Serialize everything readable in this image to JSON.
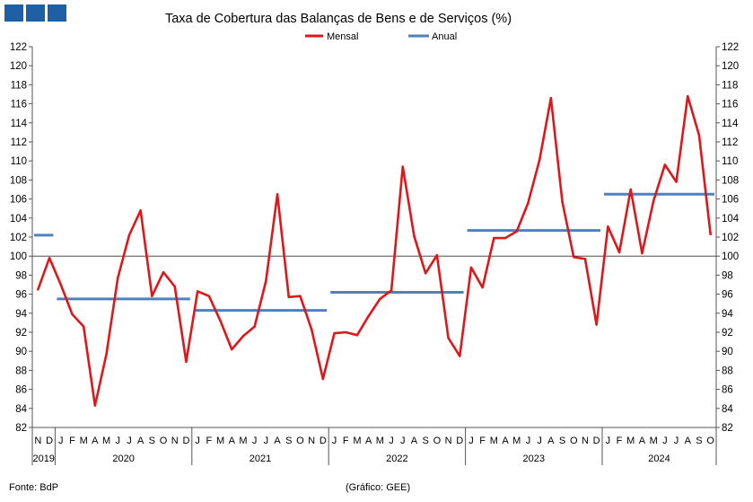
{
  "logo_squares": 3,
  "chart_data": {
    "type": "line",
    "title": "Taxa de Cobertura das Balanças de Bens e de Serviços (%)",
    "ylim": [
      82,
      122
    ],
    "yticks": [
      82,
      84,
      86,
      88,
      90,
      92,
      94,
      96,
      98,
      100,
      102,
      104,
      106,
      108,
      110,
      112,
      114,
      116,
      118,
      120,
      122
    ],
    "y_ticks_both_sides": true,
    "reference_line": 100,
    "grid": false,
    "legend_position": "top-center",
    "months": [
      "N",
      "D",
      "J",
      "F",
      "M",
      "A",
      "M",
      "J",
      "J",
      "A",
      "S",
      "O",
      "N",
      "D",
      "J",
      "F",
      "M",
      "A",
      "M",
      "J",
      "J",
      "A",
      "S",
      "O",
      "N",
      "D",
      "J",
      "F",
      "M",
      "A",
      "M",
      "J",
      "J",
      "A",
      "S",
      "O",
      "N",
      "D",
      "J",
      "F",
      "M",
      "A",
      "M",
      "J",
      "J",
      "A",
      "S",
      "O",
      "N",
      "D",
      "J",
      "F",
      "M",
      "A",
      "M",
      "J",
      "J",
      "A",
      "S",
      "O"
    ],
    "years": [
      {
        "label": "2019",
        "start": 0,
        "end": 2
      },
      {
        "label": "2020",
        "start": 2,
        "end": 14
      },
      {
        "label": "2021",
        "start": 14,
        "end": 26
      },
      {
        "label": "2022",
        "start": 26,
        "end": 38
      },
      {
        "label": "2023",
        "start": 38,
        "end": 50
      },
      {
        "label": "2024",
        "start": 50,
        "end": 60
      }
    ],
    "series": [
      {
        "name": "Mensal",
        "color": "#e0161b",
        "values": [
          96.5,
          99.8,
          97.0,
          93.9,
          92.6,
          84.3,
          89.7,
          97.7,
          102.2,
          104.8,
          95.8,
          98.3,
          96.8,
          88.9,
          96.3,
          95.8,
          93.2,
          90.2,
          91.6,
          92.6,
          97.4,
          106.5,
          95.7,
          95.8,
          92.3,
          87.1,
          91.9,
          92.0,
          91.7,
          93.7,
          95.5,
          96.4,
          109.4,
          102.1,
          98.2,
          100.1,
          91.4,
          89.5,
          98.8,
          96.7,
          101.9,
          101.9,
          102.6,
          105.6,
          110.1,
          116.6,
          105.7,
          99.9,
          99.7,
          92.8,
          103.1,
          100.4,
          107.0,
          100.3,
          105.8,
          109.6,
          107.8,
          116.8,
          112.7,
          102.3
        ]
      },
      {
        "name": "Anual",
        "color": "#4f81bd",
        "segments": [
          {
            "from": 0,
            "to": 2,
            "value": 102.2
          },
          {
            "from": 2,
            "to": 14,
            "value": 95.5
          },
          {
            "from": 14,
            "to": 26,
            "value": 94.3
          },
          {
            "from": 26,
            "to": 38,
            "value": 96.2
          },
          {
            "from": 38,
            "to": 50,
            "value": 102.7
          },
          {
            "from": 50,
            "to": 60,
            "value": 106.5
          }
        ]
      }
    ]
  },
  "footer": {
    "source": "Fonte: BdP",
    "credit": "(Gráfico: GEE)"
  }
}
